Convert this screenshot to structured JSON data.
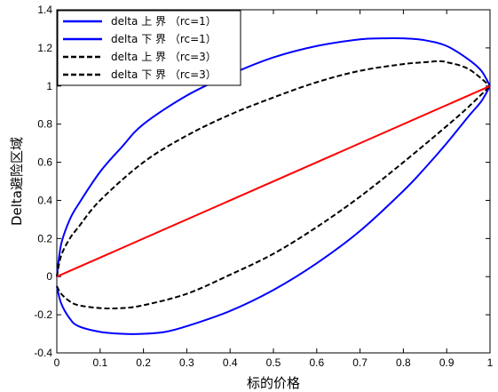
{
  "chart_data": {
    "type": "line",
    "title": "",
    "xlabel": "标的价格",
    "ylabel": "Delta避险区域",
    "xlim": [
      0,
      1
    ],
    "ylim": [
      -0.4,
      1.4
    ],
    "xticks": [
      "0",
      "0.1",
      "0.2",
      "0.3",
      "0.4",
      "0.5",
      "0.6",
      "0.7",
      "0.8",
      "0.9",
      "1"
    ],
    "yticks": [
      "-0.4",
      "-0.2",
      "0",
      "0.2",
      "0.4",
      "0.6",
      "0.8",
      "1",
      "1.2",
      "1.4"
    ],
    "grid": false,
    "legend_position": "top-left",
    "series": [
      {
        "name": "delta 上 界 （rc=1）",
        "color": "#0000ff",
        "style": "solid",
        "x": [
          0,
          0.01,
          0.03,
          0.05,
          0.1,
          0.15,
          0.2,
          0.3,
          0.4,
          0.5,
          0.6,
          0.7,
          0.75,
          0.8,
          0.85,
          0.9,
          0.95,
          0.98,
          1
        ],
        "y": [
          0,
          0.17,
          0.3,
          0.38,
          0.55,
          0.68,
          0.8,
          0.95,
          1.06,
          1.15,
          1.21,
          1.245,
          1.25,
          1.25,
          1.24,
          1.21,
          1.14,
          1.08,
          1
        ]
      },
      {
        "name": "delta 下 界 （rc=1）",
        "color": "#0000ff",
        "style": "solid",
        "x": [
          0,
          0.01,
          0.03,
          0.05,
          0.1,
          0.15,
          0.2,
          0.25,
          0.3,
          0.4,
          0.5,
          0.6,
          0.7,
          0.8,
          0.85,
          0.9,
          0.95,
          0.98,
          1
        ],
        "y": [
          -0.05,
          -0.14,
          -0.22,
          -0.26,
          -0.29,
          -0.3,
          -0.3,
          -0.29,
          -0.26,
          -0.18,
          -0.07,
          0.07,
          0.24,
          0.45,
          0.57,
          0.7,
          0.84,
          0.92,
          1
        ]
      },
      {
        "name": "delta 上 界 （rc=3）",
        "color": "#000000",
        "style": "dashed",
        "x": [
          0,
          0.01,
          0.03,
          0.05,
          0.1,
          0.2,
          0.3,
          0.4,
          0.5,
          0.6,
          0.7,
          0.8,
          0.85,
          0.88,
          0.9,
          0.95,
          1
        ],
        "y": [
          0,
          0.11,
          0.2,
          0.26,
          0.4,
          0.6,
          0.74,
          0.85,
          0.94,
          1.02,
          1.08,
          1.115,
          1.125,
          1.13,
          1.125,
          1.09,
          1
        ]
      },
      {
        "name": "delta 下 界 （rc=3）",
        "color": "#000000",
        "style": "dashed",
        "x": [
          0,
          0.01,
          0.03,
          0.05,
          0.1,
          0.15,
          0.2,
          0.3,
          0.4,
          0.5,
          0.6,
          0.7,
          0.8,
          0.9,
          0.95,
          1
        ],
        "y": [
          -0.05,
          -0.09,
          -0.13,
          -0.15,
          -0.165,
          -0.165,
          -0.15,
          -0.09,
          0.01,
          0.12,
          0.26,
          0.42,
          0.6,
          0.79,
          0.89,
          1
        ]
      },
      {
        "name": "",
        "color": "#ff0000",
        "style": "solid",
        "x": [
          0,
          1
        ],
        "y": [
          0,
          1
        ]
      }
    ],
    "legend": [
      {
        "label": "delta 上 界 （rc=1）",
        "color": "#0000ff",
        "style": "solid"
      },
      {
        "label": "delta 下 界 （rc=1）",
        "color": "#0000ff",
        "style": "solid"
      },
      {
        "label": "delta 上 界 （rc=3）",
        "color": "#000000",
        "style": "dashed"
      },
      {
        "label": "delta 下 界 （rc=3）",
        "color": "#000000",
        "style": "dashed"
      }
    ]
  }
}
